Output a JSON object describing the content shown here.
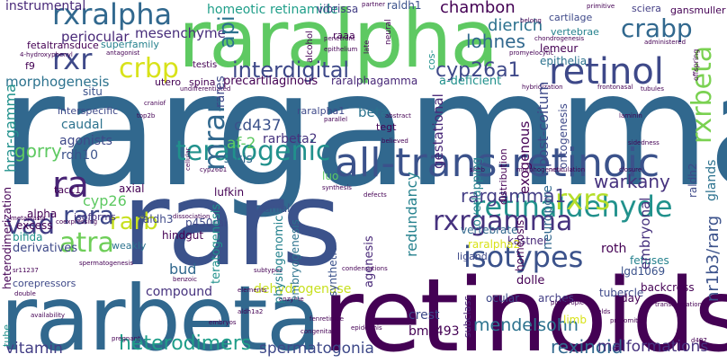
{
  "words": [
    {
      "text": "rargamma",
      "color": "#31688e"
    },
    {
      "text": "rarbeta",
      "color": "#31688e"
    },
    {
      "text": "retinoids",
      "color": "#440154"
    },
    {
      "text": "rars",
      "color": "#3b528b"
    },
    {
      "text": "raralpha",
      "color": "#5ec962"
    },
    {
      "text": "all-trans-retinoic",
      "color": "#3b528b"
    },
    {
      "text": "retinaldehyde",
      "color": "#21918c"
    },
    {
      "text": "rxrgamma",
      "color": "#46327e"
    },
    {
      "text": "rxralpha",
      "color": "#31688e"
    },
    {
      "text": "retinol",
      "color": "#3e4989"
    },
    {
      "text": "teratogenic",
      "color": "#21918c"
    },
    {
      "text": "isotypes",
      "color": "#3b528b"
    },
    {
      "text": "rxrs",
      "color": "#b5de2b"
    },
    {
      "text": "interdigital",
      "color": "#3e4989"
    },
    {
      "text": "crbp",
      "color": "#d8e219"
    },
    {
      "text": "heterodimers",
      "color": "#1f9e89"
    },
    {
      "text": "crabp",
      "color": "#31688e"
    },
    {
      "text": "rxr",
      "color": "#3e4989"
    },
    {
      "text": "atra",
      "color": "#6ece58"
    },
    {
      "text": "rara",
      "color": "#3e4989"
    },
    {
      "text": "vad",
      "color": "#433e85"
    },
    {
      "text": "ra",
      "color": "#482475"
    },
    {
      "text": "rarb",
      "color": "#c8e020"
    },
    {
      "text": "mrar",
      "color": "#31688e"
    },
    {
      "text": "rxrbeta",
      "color": "#7ad151"
    },
    {
      "text": "cyp26a1",
      "color": "#3e4989"
    },
    {
      "text": "rargamma1",
      "color": "#433e85"
    },
    {
      "text": "warkany",
      "color": "#46327e"
    },
    {
      "text": "mendelsohn",
      "color": "#2c728e"
    },
    {
      "text": "rexinoid",
      "color": "#31688e"
    },
    {
      "text": "malformations",
      "color": "#46327e"
    },
    {
      "text": "spermatogonia",
      "color": "#3e4989"
    },
    {
      "text": "vitamin",
      "color": "#433e85"
    },
    {
      "text": "dehydrogenase",
      "color": "#c8e020"
    },
    {
      "text": "compound",
      "color": "#46327e"
    },
    {
      "text": "periocular",
      "color": "#482878"
    },
    {
      "text": "mesenchyme",
      "color": "#472d7b"
    },
    {
      "text": "morphogenesis",
      "color": "#2c728e"
    },
    {
      "text": "lohnes",
      "color": "#31688e"
    },
    {
      "text": "dierich",
      "color": "#2c728e"
    },
    {
      "text": "homeotic",
      "color": "#1f9e89"
    },
    {
      "text": "retinamide",
      "color": "#1f9e89"
    },
    {
      "text": "chambon",
      "color": "#440154"
    },
    {
      "text": "raldh1",
      "color": "#3b528b"
    },
    {
      "text": "vibrissa",
      "color": "#433e85"
    },
    {
      "text": "sciera",
      "color": "#433e85"
    },
    {
      "text": "instrumental",
      "color": "#482878"
    },
    {
      "text": "fetaltransduce",
      "color": "#440154"
    },
    {
      "text": "superfamily",
      "color": "#26828e"
    },
    {
      "text": "lemeur",
      "color": "#440154"
    },
    {
      "text": "epithelia",
      "color": "#2c728e"
    },
    {
      "text": "cartilage",
      "color": "#3e4989"
    },
    {
      "text": "vertebrae",
      "color": "#26828e"
    },
    {
      "text": "gansmuller",
      "color": "#440154"
    },
    {
      "text": "hrar-gamma",
      "color": "#21918c"
    },
    {
      "text": "interspecific",
      "color": "#3e4989"
    },
    {
      "text": "caudal",
      "color": "#2c728e"
    },
    {
      "text": "agonists",
      "color": "#3e4989"
    },
    {
      "text": "gorry",
      "color": "#5ec962"
    },
    {
      "text": "rdh10",
      "color": "#3b528b"
    },
    {
      "text": "cd437",
      "color": "#3b528b"
    },
    {
      "text": "af-2",
      "color": "#5ec962"
    },
    {
      "text": "9-cis",
      "color": "#31688e"
    },
    {
      "text": "beta",
      "color": "#2c728e"
    },
    {
      "text": "tegt",
      "color": "#440154"
    },
    {
      "text": "rarbeta2",
      "color": "#46327e"
    },
    {
      "text": "raralpha1",
      "color": "#3e4989"
    },
    {
      "text": "raralphagamma",
      "color": "#482878"
    },
    {
      "text": "precartilaginous",
      "color": "#440154"
    },
    {
      "text": "a-deficient",
      "color": "#21918c"
    },
    {
      "text": "ontogenesis",
      "color": "#3e4989"
    },
    {
      "text": "post-coitum",
      "color": "#3e4989"
    },
    {
      "text": "neuropore",
      "color": "#31688e"
    },
    {
      "text": "exogenous",
      "color": "#440154"
    },
    {
      "text": "overlapping",
      "color": "#26828e"
    },
    {
      "text": "gestational",
      "color": "#482878"
    },
    {
      "text": "distribution",
      "color": "#440154"
    },
    {
      "text": "embryonal",
      "color": "#46327e"
    },
    {
      "text": "glands",
      "color": "#2c728e"
    },
    {
      "text": "raldh2",
      "color": "#3e4989"
    },
    {
      "text": "redundancy",
      "color": "#26828e"
    },
    {
      "text": "nr1b3/rarg",
      "color": "#3b528b"
    },
    {
      "text": "cyp26",
      "color": "#5ec962"
    },
    {
      "text": "tacc1",
      "color": "#440154"
    },
    {
      "text": "alpha",
      "color": "#440154"
    },
    {
      "text": "excess",
      "color": "#440154"
    },
    {
      "text": "bifida",
      "color": "#21918c"
    },
    {
      "text": "isoforms",
      "color": "#46327e"
    },
    {
      "text": "raldh3",
      "color": "#3e4989"
    },
    {
      "text": "lufkin",
      "color": "#440154"
    },
    {
      "text": "cranial",
      "color": "#3b528b"
    },
    {
      "text": "p450rai",
      "color": "#3e4989"
    },
    {
      "text": "hindgut",
      "color": "#440154"
    },
    {
      "text": "bud",
      "color": "#31688e"
    },
    {
      "text": "weakly",
      "color": "#2c728e"
    },
    {
      "text": "teratogenesis",
      "color": "#21918c"
    },
    {
      "text": "synthetic",
      "color": "#3b528b"
    },
    {
      "text": "physiogenomic",
      "color": "#26828e"
    },
    {
      "text": "embryogenesis",
      "color": "#2c728e"
    },
    {
      "text": "agenesis",
      "color": "#482878"
    },
    {
      "text": "homeosis",
      "color": "#440154"
    },
    {
      "text": "dolle",
      "color": "#440154"
    },
    {
      "text": "roth",
      "color": "#26828e"
    },
    {
      "text": "fetuses",
      "color": "#3b528b"
    },
    {
      "text": "lgd1069",
      "color": "#482878"
    },
    {
      "text": "kastner",
      "color": "#d8e219"
    },
    {
      "text": "raralpha2",
      "color": "#31688e"
    },
    {
      "text": "vertebrate",
      "color": "#3e4989"
    },
    {
      "text": "ligand",
      "color": "#3e4989"
    },
    {
      "text": "derivatives",
      "color": "#440154"
    },
    {
      "text": "heterodimerization",
      "color": "#3e4989"
    },
    {
      "text": "corepressors",
      "color": "#21918c"
    },
    {
      "text": "tube",
      "color": "#3e4989"
    },
    {
      "text": "ocular",
      "color": "#433e85"
    },
    {
      "text": "arches",
      "color": "#3e4989"
    },
    {
      "text": "crest",
      "color": "#440154"
    },
    {
      "text": "bms493",
      "color": "#482878"
    },
    {
      "text": "subclass",
      "color": "#3e4989"
    },
    {
      "text": "tubercle",
      "color": "#440154"
    },
    {
      "text": "backcross",
      "color": "#440154"
    },
    {
      "text": "day",
      "color": "#d8e219"
    },
    {
      "text": "limb",
      "color": "#440154"
    },
    {
      "text": "utero",
      "color": "#440154"
    },
    {
      "text": "spina",
      "color": "#3b528b"
    },
    {
      "text": "situ",
      "color": "#440154"
    },
    {
      "text": "f9",
      "color": "#2c728e"
    },
    {
      "text": "api",
      "color": "#21918c"
    },
    {
      "text": "cos-",
      "color": "#3e4989"
    },
    {
      "text": "rares",
      "color": "#440154"
    },
    {
      "text": "raaa",
      "color": "#440154"
    },
    {
      "text": "testis",
      "color": "#440154"
    },
    {
      "text": "alcohol",
      "color": "#440154"
    },
    {
      "text": "neural",
      "color": "#440154"
    },
    {
      "text": "late",
      "color": "#440154"
    },
    {
      "text": "partner",
      "color": "#440154"
    },
    {
      "text": "belong",
      "color": "#440154"
    },
    {
      "text": "primitive",
      "color": "#440154"
    },
    {
      "text": "penetrant",
      "color": "#440154"
    },
    {
      "text": "epithelium",
      "color": "#440154"
    },
    {
      "text": "chondrogenesis",
      "color": "#440154"
    },
    {
      "text": "4-hydroxyphenyl",
      "color": "#440154"
    },
    {
      "text": "antagonist",
      "color": "#440154"
    },
    {
      "text": "promyelocytic",
      "color": "#440154"
    },
    {
      "text": "administered",
      "color": "#440154"
    },
    {
      "text": "offspring",
      "color": "#440154"
    },
    {
      "text": "tubules",
      "color": "#440154"
    },
    {
      "text": "frontonasal",
      "color": "#440154"
    },
    {
      "text": "hybridization",
      "color": "#440154"
    },
    {
      "text": "undifferentiated",
      "color": "#440154"
    },
    {
      "text": "craniof",
      "color": "#440154"
    },
    {
      "text": "top2b",
      "color": "#440154"
    },
    {
      "text": "parallel",
      "color": "#440154"
    },
    {
      "text": "abstract",
      "color": "#440154"
    },
    {
      "text": "believed",
      "color": "#440154"
    },
    {
      "text": "laminin",
      "color": "#440154"
    },
    {
      "text": "sidedness",
      "color": "#440154"
    },
    {
      "text": "closure",
      "color": "#440154"
    },
    {
      "text": "neurulation",
      "color": "#440154"
    },
    {
      "text": "morphogenetic",
      "color": "#440154"
    },
    {
      "text": "shhb",
      "color": "#440154"
    },
    {
      "text": "cellular",
      "color": "#440154"
    },
    {
      "text": "cyp26b1",
      "color": "#440154"
    },
    {
      "text": "synthesis",
      "color": "#440154"
    },
    {
      "text": "defects",
      "color": "#440154"
    },
    {
      "text": "dissociation",
      "color": "#440154"
    },
    {
      "text": "metaplasia",
      "color": "#440154"
    },
    {
      "text": "coexpressing",
      "color": "#440154"
    },
    {
      "text": "sr11237",
      "color": "#440154"
    },
    {
      "text": "spermatogenesis",
      "color": "#440154"
    },
    {
      "text": "double",
      "color": "#440154"
    },
    {
      "text": "benzoic",
      "color": "#440154"
    },
    {
      "text": "subtypes",
      "color": "#440154"
    },
    {
      "text": "elements",
      "color": "#440154"
    },
    {
      "text": "enzyme",
      "color": "#440154"
    },
    {
      "text": "condensations",
      "color": "#440154"
    },
    {
      "text": "skin",
      "color": "#440154"
    },
    {
      "text": "pleiotropic",
      "color": "#440154"
    },
    {
      "text": "transformations",
      "color": "#440154"
    },
    {
      "text": "availability",
      "color": "#440154"
    },
    {
      "text": "aldh1a2",
      "color": "#440154"
    },
    {
      "text": "embryos",
      "color": "#440154"
    },
    {
      "text": "fenretinide",
      "color": "#440154"
    },
    {
      "text": "epidermis",
      "color": "#440154"
    },
    {
      "text": "congenital",
      "color": "#440154"
    },
    {
      "text": "pregnant",
      "color": "#440154"
    },
    {
      "text": "yields",
      "color": "#440154"
    },
    {
      "text": "d407",
      "color": "#440154"
    },
    {
      "text": "presomitic",
      "color": "#440154"
    },
    {
      "text": "luo",
      "color": "#440154"
    },
    {
      "text": "axial",
      "color": "#5ec962"
    },
    {
      "text": "distal",
      "color": "#440154"
    }
  ]
}
